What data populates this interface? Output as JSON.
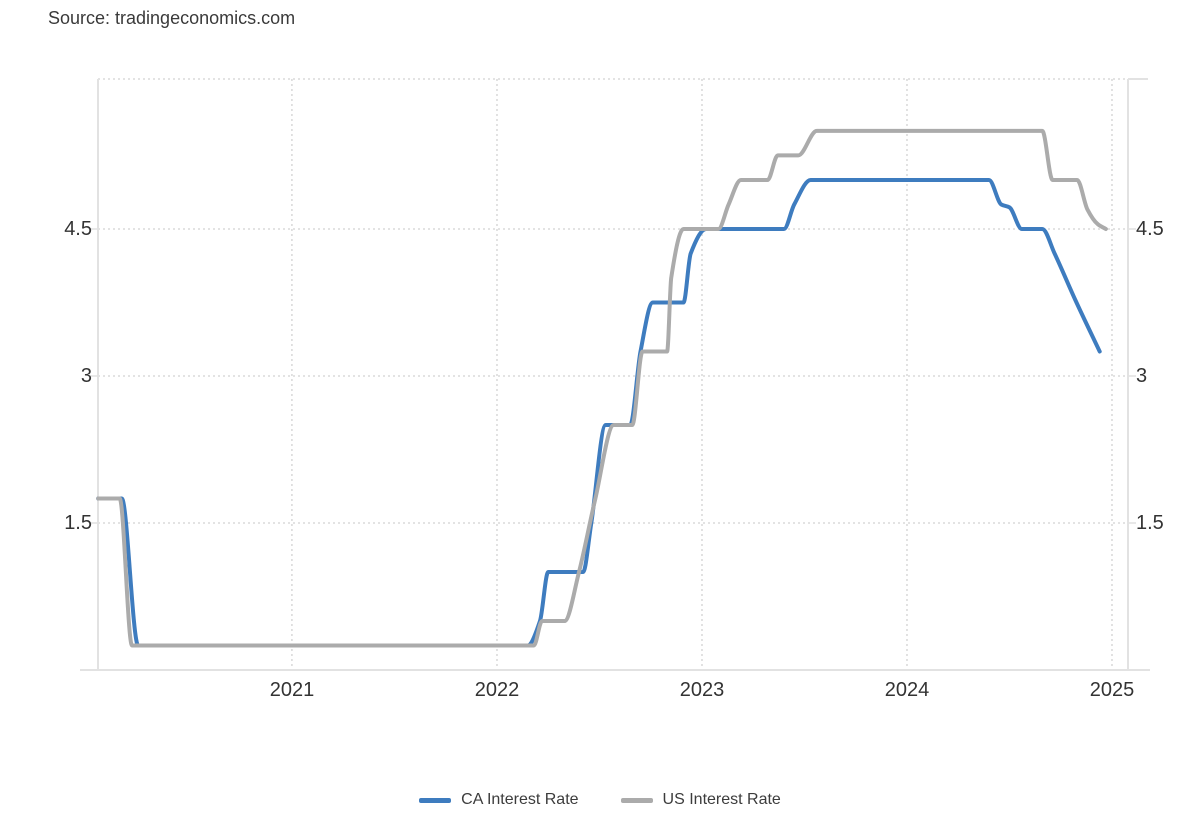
{
  "source_label": "Source: tradingeconomics.com",
  "legend": {
    "items": [
      {
        "label": "CA Interest Rate",
        "color": "#3E7CBF"
      },
      {
        "label": "US Interest Rate",
        "color": "#ABABAB"
      }
    ]
  },
  "chart_data": {
    "type": "line",
    "title": "",
    "xlabel": "",
    "ylabel": "",
    "x_tick_labels": [
      "2021",
      "2022",
      "2023",
      "2024",
      "2025"
    ],
    "x_ticks": [
      2021,
      2022,
      2023,
      2024,
      2025
    ],
    "y_tick_labels": [
      "4.5",
      "3",
      "1.5"
    ],
    "y_ticks": [
      4.5,
      3,
      1.5
    ],
    "xlim": [
      2020.054,
      2025.078
    ],
    "ylim": [
      0,
      6.03
    ],
    "grid": "dotted",
    "grid_color": "#dadada",
    "border_color": "#e2e2e2",
    "tick_label_color": "#333333",
    "legend_position": "bottom",
    "series": [
      {
        "name": "CA Interest Rate",
        "color": "#3E7CBF",
        "unit": "%",
        "points": [
          [
            2020.055,
            1.75
          ],
          [
            2020.17,
            1.75
          ],
          [
            2020.25,
            0.25
          ],
          [
            2022.15,
            0.25
          ],
          [
            2022.21,
            0.5
          ],
          [
            2022.25,
            1.0
          ],
          [
            2022.42,
            1.0
          ],
          [
            2022.46,
            1.5
          ],
          [
            2022.53,
            2.5
          ],
          [
            2022.65,
            2.5
          ],
          [
            2022.7,
            3.25
          ],
          [
            2022.76,
            3.75
          ],
          [
            2022.91,
            3.75
          ],
          [
            2022.945,
            4.25
          ],
          [
            2023.02,
            4.5
          ],
          [
            2023.4,
            4.5
          ],
          [
            2023.45,
            4.75
          ],
          [
            2023.53,
            5.0
          ],
          [
            2024.4,
            5.0
          ],
          [
            2024.46,
            4.75
          ],
          [
            2024.5,
            4.72
          ],
          [
            2024.56,
            4.5
          ],
          [
            2024.66,
            4.5
          ],
          [
            2024.72,
            4.25
          ],
          [
            2024.82,
            3.78
          ],
          [
            2024.94,
            3.25
          ]
        ]
      },
      {
        "name": "US Interest Rate",
        "color": "#ABABAB",
        "unit": "%",
        "points": [
          [
            2020.055,
            1.75
          ],
          [
            2020.16,
            1.75
          ],
          [
            2020.22,
            0.25
          ],
          [
            2022.18,
            0.25
          ],
          [
            2022.22,
            0.5
          ],
          [
            2022.33,
            0.5
          ],
          [
            2022.4,
            1.0
          ],
          [
            2022.48,
            1.75
          ],
          [
            2022.57,
            2.5
          ],
          [
            2022.66,
            2.5
          ],
          [
            2022.71,
            3.25
          ],
          [
            2022.83,
            3.25
          ],
          [
            2022.85,
            4.0
          ],
          [
            2022.91,
            4.5
          ],
          [
            2023.08,
            4.5
          ],
          [
            2023.13,
            4.75
          ],
          [
            2023.19,
            5.0
          ],
          [
            2023.32,
            5.0
          ],
          [
            2023.37,
            5.25
          ],
          [
            2023.47,
            5.25
          ],
          [
            2023.56,
            5.5
          ],
          [
            2024.66,
            5.5
          ],
          [
            2024.71,
            5.0
          ],
          [
            2024.83,
            5.0
          ],
          [
            2024.88,
            4.7
          ],
          [
            2024.93,
            4.55
          ],
          [
            2024.97,
            4.5
          ]
        ]
      }
    ]
  }
}
